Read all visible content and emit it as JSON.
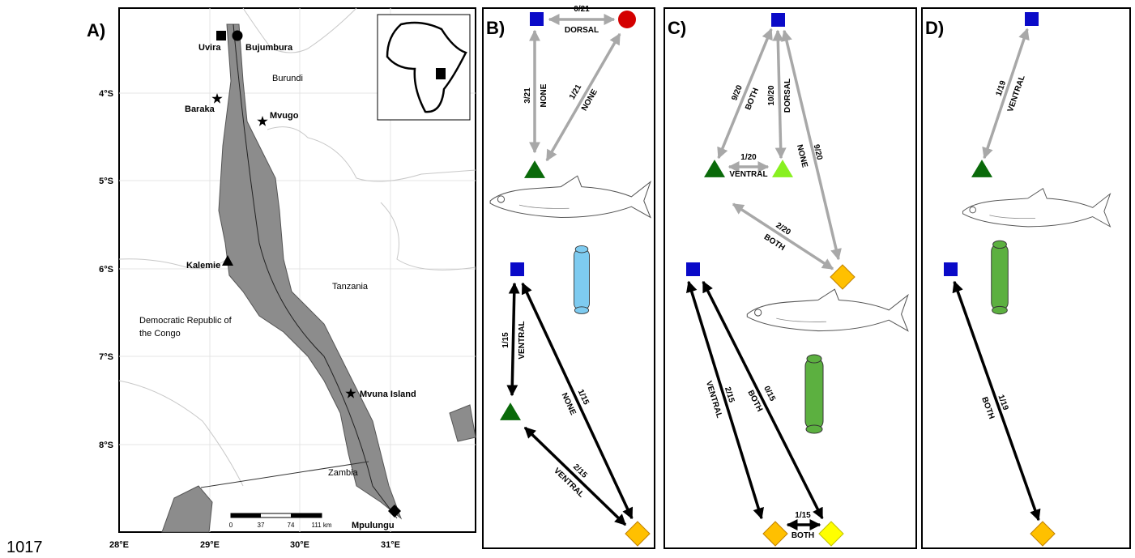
{
  "page_number": "1017",
  "panel_a": {
    "label": "A)",
    "places": [
      "Uvira",
      "Bujumbura",
      "Baraka",
      "Mvugo",
      "Kalemie",
      "Mvuna Island",
      "Mpulungu"
    ],
    "countries": [
      "Burundi",
      "Tanzania",
      "Democratic Republic of",
      "the Congo",
      "Zambia"
    ],
    "lat_labels": [
      "4°S",
      "5°S",
      "6°S",
      "7°S",
      "8°S"
    ],
    "lon_labels": [
      "28°E",
      "29°E",
      "30°E",
      "31°E"
    ],
    "scale_labels": [
      "0",
      "37",
      "74",
      "111 km"
    ]
  },
  "panel_b": {
    "label": "B)",
    "edges": [
      {
        "count": "0/21",
        "region": "DORSAL"
      },
      {
        "count": "3/21",
        "region": "NONE"
      },
      {
        "count": "1/21",
        "region": "NONE"
      },
      {
        "count": "1/15",
        "region": "VENTRAL"
      },
      {
        "count": "1/15",
        "region": "NONE"
      },
      {
        "count": "2/15",
        "region": "VENTRAL"
      }
    ]
  },
  "panel_c": {
    "label": "C)",
    "edges": [
      {
        "count": "9/20",
        "region": "BOTH"
      },
      {
        "count": "10/20",
        "region": "DORSAL"
      },
      {
        "count": "1/20",
        "region": "VENTRAL"
      },
      {
        "count": "9/20",
        "region": "NONE"
      },
      {
        "count": "2/20",
        "region": "BOTH"
      },
      {
        "count": "2/15",
        "region": "VENTRAL"
      },
      {
        "count": "0/15",
        "region": "BOTH"
      },
      {
        "count": "1/15",
        "region": "BOTH"
      }
    ]
  },
  "panel_d": {
    "label": "D)",
    "edges": [
      {
        "count": "1/19",
        "region": "VENTRAL"
      },
      {
        "count": "1/19",
        "region": "BOTH"
      }
    ]
  }
}
